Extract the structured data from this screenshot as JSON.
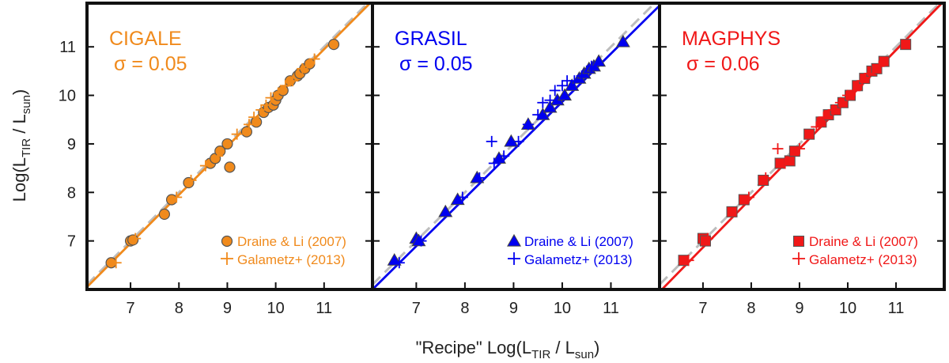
{
  "figure": {
    "ylabel_main": "Log(L",
    "ylabel_sub1": "TIR",
    "ylabel_mid": " / L",
    "ylabel_sub2": "sun",
    "ylabel_end": ")",
    "xlabel_main": "\"Recipe\" Log(L",
    "xlabel_sub1": "TIR",
    "xlabel_mid": " / L",
    "xlabel_sub2": "sun",
    "xlabel_end": ")"
  },
  "chart_data": [
    {
      "type": "scatter",
      "title": "CIGALE",
      "sigma_label": "σ = 0.05",
      "color": "#f08a1c",
      "marker": "circle",
      "xlim": [
        6.1,
        12.0
      ],
      "ylim": [
        6.0,
        11.9
      ],
      "xticks": [
        "7",
        "8",
        "9",
        "10",
        "11"
      ],
      "yticks": [
        "7",
        "8",
        "9",
        "10",
        "11"
      ],
      "legend": [
        "Draine & Li (2007)",
        "Galametz+ (2013)"
      ],
      "series": [
        {
          "name": "Draine & Li (2007)",
          "x": [
            6.6,
            7.0,
            7.05,
            7.7,
            7.85,
            8.2,
            8.65,
            8.75,
            8.85,
            9.0,
            9.05,
            9.4,
            9.6,
            9.75,
            9.85,
            9.95,
            10.0,
            10.05,
            10.15,
            10.3,
            10.45,
            10.5,
            10.6,
            10.7,
            11.2
          ],
          "y": [
            6.55,
            7.0,
            7.02,
            7.55,
            7.85,
            8.2,
            8.6,
            8.7,
            8.85,
            9.0,
            8.52,
            9.25,
            9.45,
            9.65,
            9.75,
            9.8,
            9.9,
            10.0,
            10.1,
            10.3,
            10.4,
            10.45,
            10.55,
            10.65,
            11.05
          ]
        },
        {
          "name": "Galametz+ (2013)",
          "x": [
            6.7,
            7.1,
            7.95,
            8.25,
            8.55,
            8.8,
            9.2,
            9.45,
            9.55,
            9.7,
            9.8,
            9.9,
            10.05,
            10.2,
            10.35,
            10.55,
            10.65,
            10.8
          ],
          "y": [
            6.55,
            7.05,
            7.9,
            8.25,
            8.55,
            8.75,
            9.2,
            9.4,
            9.55,
            9.7,
            9.8,
            9.95,
            10.05,
            10.2,
            10.3,
            10.55,
            10.6,
            10.75
          ]
        }
      ],
      "fit_line": {
        "x": [
          6.1,
          12.0
        ],
        "y": [
          6.05,
          11.95
        ]
      },
      "one_to_one": true
    },
    {
      "type": "scatter",
      "title": "GRASIL",
      "sigma_label": "σ = 0.05",
      "color": "#0000f0",
      "marker": "triangle",
      "xlim": [
        6.1,
        12.0
      ],
      "ylim": [
        6.0,
        11.9
      ],
      "xticks": [
        "7",
        "8",
        "9",
        "10",
        "11"
      ],
      "yticks": [
        "7",
        "8",
        "9",
        "10",
        "11"
      ],
      "legend": [
        "Draine & Li (2007)",
        "Galametz+ (2013)"
      ],
      "series": [
        {
          "name": "Draine & Li (2007)",
          "x": [
            6.55,
            7.0,
            7.05,
            7.6,
            7.85,
            8.25,
            8.7,
            8.95,
            9.3,
            9.6,
            9.75,
            9.9,
            10.05,
            10.2,
            10.35,
            10.45,
            10.55,
            10.65,
            10.75,
            11.25
          ],
          "y": [
            6.6,
            7.05,
            7.0,
            7.6,
            7.85,
            8.3,
            8.7,
            9.05,
            9.4,
            9.6,
            9.75,
            9.9,
            10.0,
            10.2,
            10.35,
            10.45,
            10.55,
            10.6,
            10.7,
            11.1
          ]
        },
        {
          "name": "Galametz+ (2013)",
          "x": [
            6.65,
            7.1,
            7.95,
            8.3,
            8.55,
            8.6,
            8.8,
            9.1,
            9.3,
            9.5,
            9.6,
            9.75,
            9.85,
            10.0,
            10.1,
            10.25,
            10.4,
            10.6
          ],
          "y": [
            6.55,
            7.0,
            7.9,
            8.3,
            9.05,
            8.6,
            8.75,
            9.05,
            9.4,
            9.6,
            9.85,
            9.9,
            10.1,
            10.2,
            10.3,
            10.3,
            10.4,
            10.6
          ]
        }
      ],
      "fit_line": {
        "x": [
          6.1,
          12.0
        ],
        "y": [
          6.0,
          11.85
        ]
      },
      "one_to_one": true
    },
    {
      "type": "scatter",
      "title": "MAGPHYS",
      "sigma_label": "σ = 0.06",
      "color": "#f01818",
      "marker": "square",
      "xlim": [
        6.1,
        12.0
      ],
      "ylim": [
        6.0,
        11.9
      ],
      "xticks": [
        "7",
        "8",
        "9",
        "10",
        "11"
      ],
      "yticks": [
        "7",
        "8",
        "9",
        "10",
        "11"
      ],
      "legend": [
        "Draine & Li (2007)",
        "Galametz+ (2013)"
      ],
      "series": [
        {
          "name": "Draine & Li (2007)",
          "x": [
            6.6,
            7.0,
            7.05,
            7.6,
            7.85,
            8.25,
            8.6,
            8.8,
            8.9,
            9.2,
            9.45,
            9.6,
            9.75,
            9.9,
            10.05,
            10.2,
            10.35,
            10.5,
            10.6,
            10.75,
            11.2
          ],
          "y": [
            6.6,
            7.05,
            7.0,
            7.6,
            7.85,
            8.25,
            8.6,
            8.65,
            8.85,
            9.2,
            9.45,
            9.6,
            9.7,
            9.85,
            10.0,
            10.2,
            10.35,
            10.5,
            10.55,
            10.7,
            11.05
          ]
        },
        {
          "name": "Galametz+ (2013)",
          "x": [
            6.7,
            7.1,
            7.95,
            8.3,
            8.55,
            8.7,
            9.0,
            9.35,
            9.5,
            9.7,
            9.85,
            10.0,
            10.15,
            10.3,
            10.45,
            10.65
          ],
          "y": [
            6.6,
            7.05,
            7.9,
            8.3,
            8.9,
            8.6,
            8.9,
            9.35,
            9.55,
            9.7,
            9.85,
            10.0,
            10.1,
            10.3,
            10.45,
            10.6
          ]
        }
      ],
      "fit_line": {
        "x": [
          6.1,
          12.0
        ],
        "y": [
          5.95,
          11.95
        ]
      },
      "one_to_one": true
    }
  ]
}
